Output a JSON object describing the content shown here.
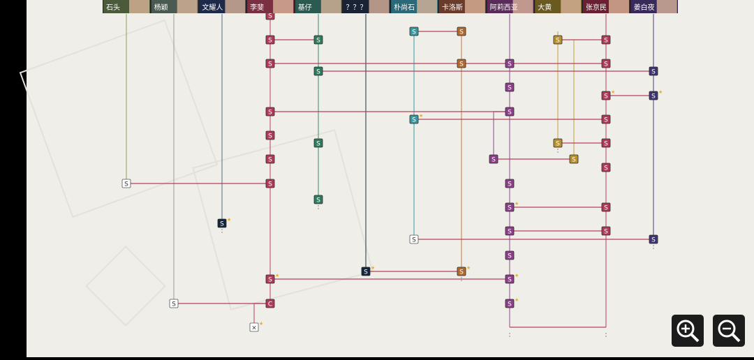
{
  "header": {
    "characters": [
      "石头",
      "杨颖",
      "文耀人",
      "李斐",
      "基仔",
      "？？？",
      "朴尚石",
      "卡洛斯",
      "阿莉西亚",
      "大黄",
      "张京民",
      "姜白夜"
    ]
  },
  "nodes": [
    {
      "label": "S"
    },
    {
      "label": "S"
    },
    {
      "label": "S"
    },
    {
      "label": "S"
    },
    {
      "label": "S"
    },
    {
      "label": "S"
    },
    {
      "label": "S"
    },
    {
      "label": "S"
    },
    {
      "label": "S"
    },
    {
      "label": "S"
    },
    {
      "label": "S"
    },
    {
      "label": "S"
    },
    {
      "label": "S"
    },
    {
      "label": "S"
    },
    {
      "label": "S"
    },
    {
      "label": "S"
    },
    {
      "label": "S"
    },
    {
      "label": "S"
    },
    {
      "label": "S"
    },
    {
      "label": "S"
    },
    {
      "label": "S"
    },
    {
      "label": "S"
    },
    {
      "label": "S"
    },
    {
      "label": "S"
    },
    {
      "label": "S"
    },
    {
      "label": "S"
    },
    {
      "label": "S"
    },
    {
      "label": "S"
    },
    {
      "label": "S"
    },
    {
      "label": "S"
    },
    {
      "label": "S"
    },
    {
      "label": "S"
    },
    {
      "label": "S"
    },
    {
      "label": "S"
    },
    {
      "label": "S"
    },
    {
      "label": "S"
    },
    {
      "label": "S"
    },
    {
      "label": "S"
    },
    {
      "label": "S"
    },
    {
      "label": "S"
    },
    {
      "label": "S"
    },
    {
      "label": "S"
    },
    {
      "label": "S"
    },
    {
      "label": "S"
    },
    {
      "label": "S"
    },
    {
      "label": "C"
    },
    {
      "label": "S"
    },
    {
      "label": "×"
    }
  ]
}
